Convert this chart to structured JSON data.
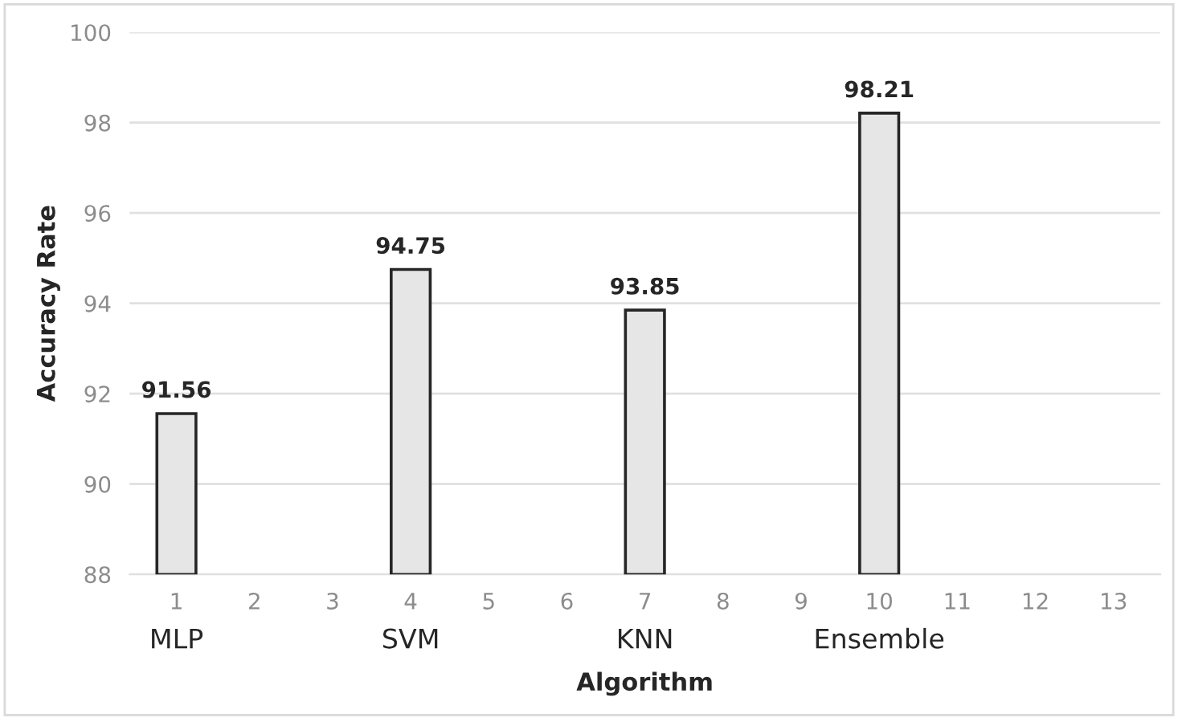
{
  "chart_data": {
    "type": "bar",
    "xlabel": "Algorithm",
    "ylabel": "Accuracy Rate",
    "categories": [
      "1",
      "2",
      "3",
      "4",
      "5",
      "6",
      "7",
      "8",
      "9",
      "10",
      "11",
      "12",
      "13"
    ],
    "values": [
      91.56,
      null,
      null,
      94.75,
      null,
      null,
      93.85,
      null,
      null,
      98.21,
      null,
      null,
      null
    ],
    "color": "#e6e6e6",
    "ylim": [
      88,
      100
    ],
    "yticks": [
      88,
      90,
      92,
      94,
      96,
      98,
      100
    ],
    "grid": "y",
    "data_labels": true,
    "annotations": [
      "MLP",
      "SVM",
      "KNN",
      "Ensemble"
    ]
  }
}
